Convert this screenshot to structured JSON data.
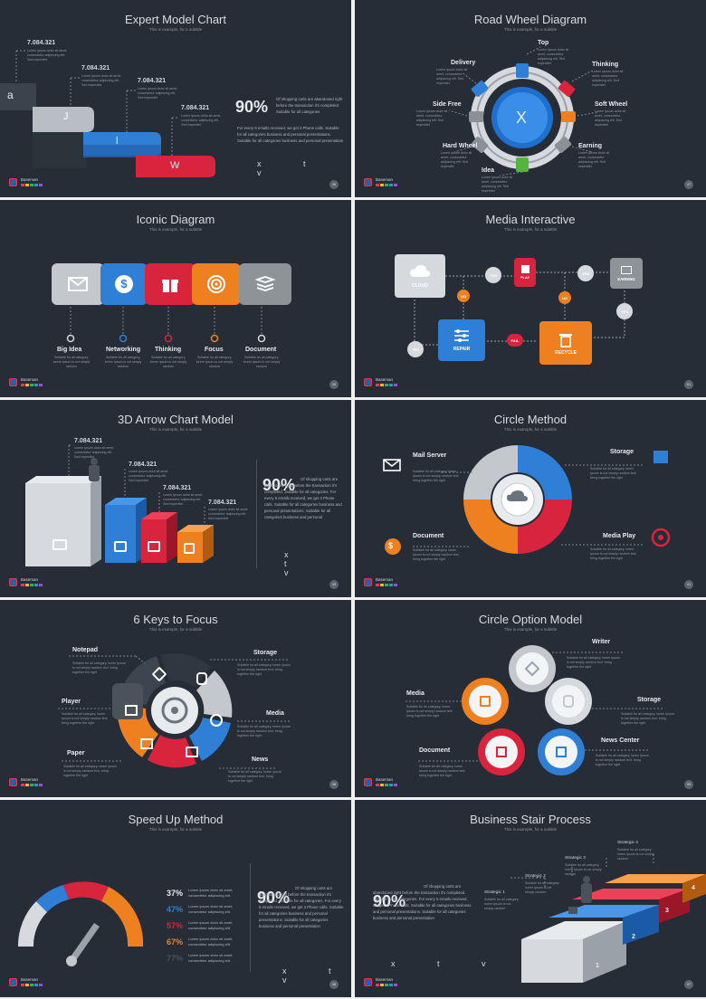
{
  "common": {
    "subtitle": "This is example, for a subtitle",
    "brand": "Baseman",
    "brand_colors": [
      "#e23a52",
      "#f0b63a",
      "#35b04a",
      "#2f8fd8",
      "#8c5ac8"
    ],
    "colors": {
      "bg": "#262d36",
      "blue": "#2f7fd6",
      "red": "#d9243d",
      "orange": "#ee8020",
      "gray": "#c4c8cc",
      "green": "#56b43e"
    }
  },
  "slide1": {
    "title": "Expert Model Chart",
    "steps": [
      {
        "num": "7.084.321",
        "letter": "a"
      },
      {
        "num": "7.084.321",
        "letter": "J"
      },
      {
        "num": "7.084.321",
        "letter": "l"
      },
      {
        "num": "7.084.321",
        "letter": "W"
      }
    ],
    "small": "Lorem ipsum dolor sit amet, consectetur adipiscing elit. Sed imperdiet",
    "percent": "90%",
    "para1": "Of shopping carts are abandoned right before the transaction it's completed. Suitable for all categories",
    "para2": "For every 6 emails received, we get 3 Phone calls. Suitable for all categories business and personal presentations. Suitable for all categories business and personal presentation",
    "xtv": "x t v",
    "page": "46"
  },
  "slide2": {
    "title": "Road Wheel Diagram",
    "center": "X",
    "labels": [
      "Top",
      "Thinking",
      "Soft Wheel",
      "Earning",
      "Idea",
      "Hard Wheel",
      "Side Free",
      "Delivery"
    ],
    "small": "Lorem ipsum dolor sit amet, consectetur adipiscing elit. Sed imperdiet",
    "page": "47"
  },
  "slide3": {
    "title": "Iconic Diagram",
    "items": [
      {
        "label": "Big Idea",
        "icon": "envelope-icon",
        "color": "#c4c8cc"
      },
      {
        "label": "Networking",
        "icon": "dollar-icon",
        "color": "#2f7fd6"
      },
      {
        "label": "Thinking",
        "icon": "gift-icon",
        "color": "#d9243d"
      },
      {
        "label": "Focus",
        "icon": "target-icon",
        "color": "#ee8020"
      },
      {
        "label": "Document",
        "icon": "stack-icon",
        "color": "#8e9397"
      }
    ],
    "desc": "Suitable for all category, lorem Ipsum is not simply random",
    "page": "34"
  },
  "slide4": {
    "title": "Media Interactive",
    "cloud": "CLOUD",
    "play": "PLAY",
    "earning": "EARNING",
    "repair": "REPAIR",
    "recycle": "RECYCLE",
    "yes": "YES",
    "no": "NO",
    "fail": "FAIL",
    "page": "51"
  },
  "slide5": {
    "title": "3D Arrow Chart Model",
    "nums": [
      "7.084.321",
      "7.084.321",
      "7.084.321",
      "7.084.321"
    ],
    "small": "Lorem ipsum dolor sit amet, consectetur adipiscing elit. Sed imperdiet",
    "percent": "90%",
    "para": "Of shopping carts are abandoned right before the transaction it's completed. Suitable for all categories. For every 6 emails received, we get 3 Phone calls. Suitable for all categories business and personal presentations. Suitable for all categories business and personal",
    "xtv": "x t v",
    "page": "33"
  },
  "slide6": {
    "title": "Circle Method",
    "labels": {
      "mail": "Mail Server",
      "storage": "Storage",
      "document": "Document",
      "media": "Media Play"
    },
    "desc": "Suitable for all category, lorem Ipsum is not simply random text. bring together the right",
    "page": "41"
  },
  "slide7": {
    "title": "6 Keys to Focus",
    "labels": {
      "notepad": "Notepad",
      "storage": "Storage",
      "player": "Player",
      "media": "Media",
      "paper": "Paper",
      "news": "News"
    },
    "desc": "Suitable for all category, lorem Ipsum is not simply random text. bring together the right",
    "page": "38"
  },
  "slide8": {
    "title": "Circle Option Model",
    "labels": {
      "writer": "Writer",
      "media": "Media",
      "storage": "Storage",
      "document": "Document",
      "news": "News Center"
    },
    "desc": "Suitable for all category, lorem Ipsum is not simply random text. bring together the right",
    "page": "39"
  },
  "slide9": {
    "title": "Speed Up Method",
    "rows": [
      {
        "pct": "37%",
        "color": "#e6eaee"
      },
      {
        "pct": "47%",
        "color": "#2f7fd6"
      },
      {
        "pct": "57%",
        "color": "#d9243d"
      },
      {
        "pct": "67%",
        "color": "#ee8020"
      },
      {
        "pct": "77%",
        "color": "#4a525c"
      }
    ],
    "row_text": "Lorem ipsum dolor sit amet, consectetur adipiscing elit.",
    "percent": "90%",
    "para": "Of shopping carts are abandoned right before the transaction it's completed. Suitable for all categories. For every 6 emails received, we get 3 Phone calls. Suitable for all categories business and personal presentations. Suitable for all categories business and personal presentation",
    "xtv": "x t v",
    "page": "36"
  },
  "slide10": {
    "title": "Business Stair Process",
    "strategies": [
      "Strategic 1",
      "Strategic 2",
      "Strategic 3",
      "Strategic 4"
    ],
    "steps": [
      "1",
      "2",
      "3",
      "4"
    ],
    "small": "Suitable for all category, lorem Ipsum is not simply random",
    "percent": "90%",
    "para": "Of shopping carts are abandoned right before the transaction it's completed. Suitable for all categories. For every 6 emails received, we get 3 Phone calls. Suitable for all categories business and personal presentations. Suitable for all categories business and personal presentation",
    "xtv": "x t v",
    "page": "37"
  }
}
